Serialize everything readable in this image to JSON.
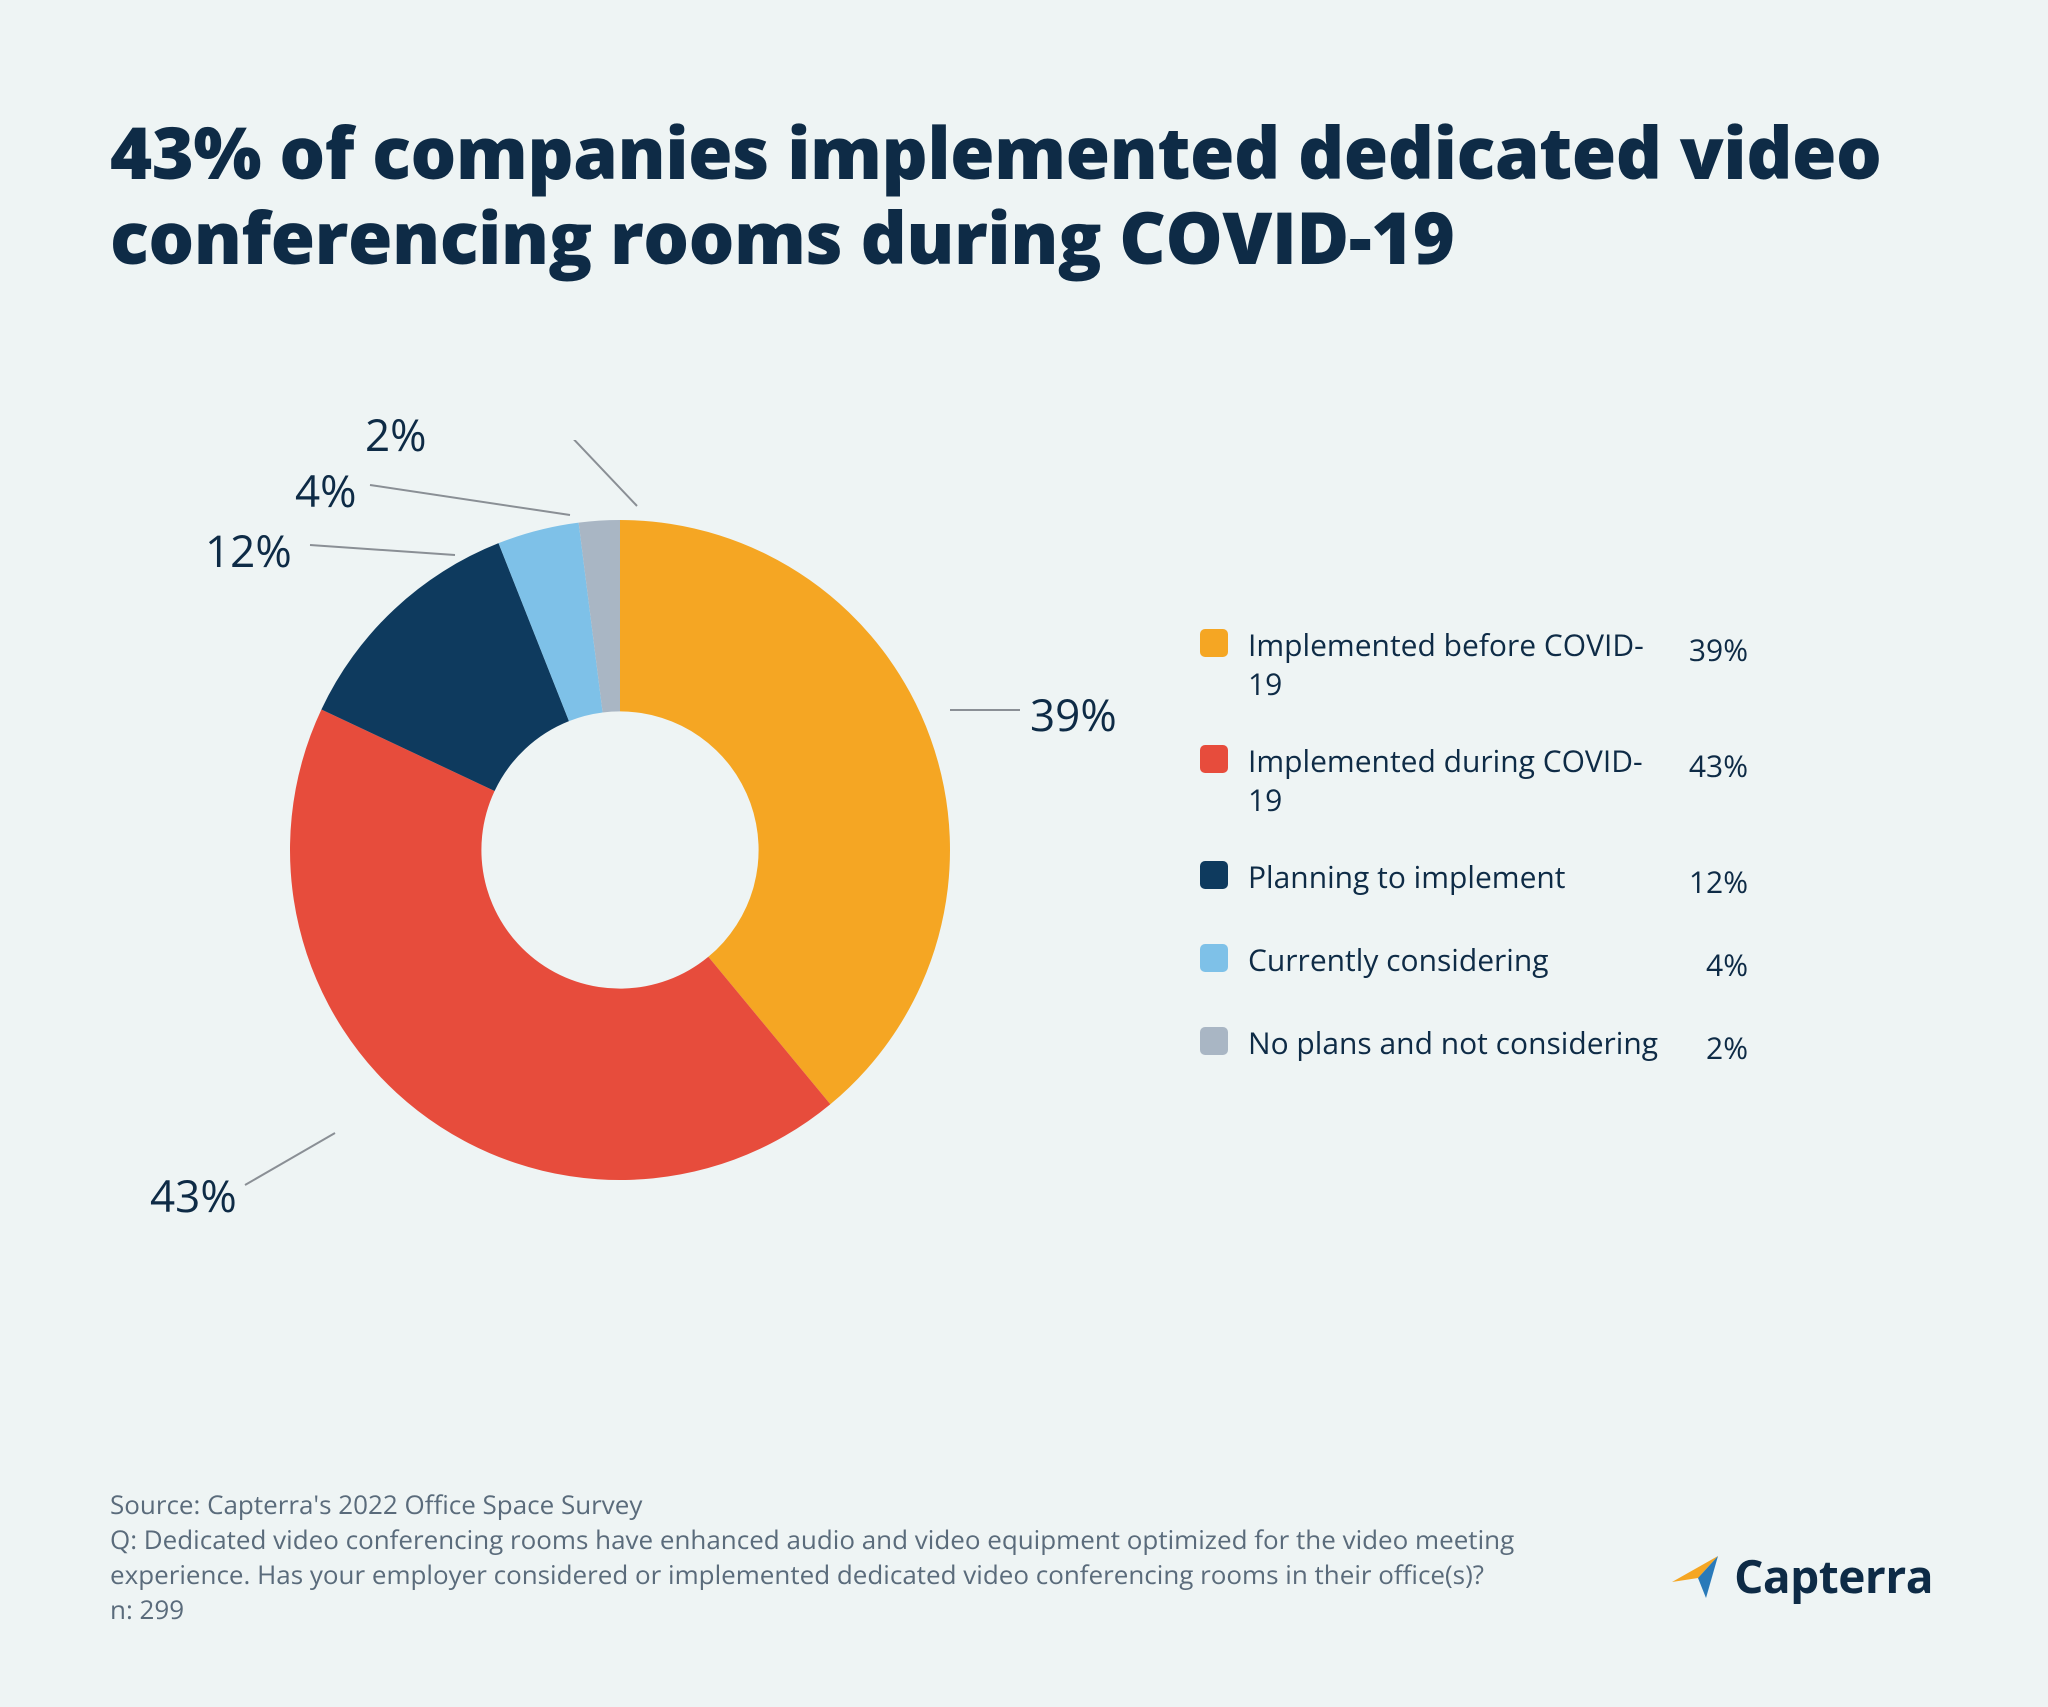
{
  "title": "43% of companies implemented dedicated video conferencing rooms during COVID-19",
  "chart": {
    "type": "donut",
    "background_color": "#eef4f4",
    "inner_radius_ratio": 0.42,
    "outer_radius": 330,
    "title_fontsize": 72,
    "title_color": "#0e2b46",
    "label_fontsize": 44,
    "legend_fontsize": 30,
    "leader_color": "#8a8f95",
    "slices": [
      {
        "label": "Implemented before COVID-19",
        "value": 39,
        "display": "39%",
        "color": "#f5a623"
      },
      {
        "label": "Implemented during COVID-19",
        "value": 43,
        "display": "43%",
        "color": "#e74c3c"
      },
      {
        "label": "Planning to implement",
        "value": 12,
        "display": "12%",
        "color": "#0e3a5e"
      },
      {
        "label": "Currently considering",
        "value": 4,
        "display": "4%",
        "color": "#7ec1e8"
      },
      {
        "label": "No plans and not considering",
        "value": 2,
        "display": "2%",
        "color": "#a9b6c4"
      }
    ]
  },
  "footer": {
    "source": "Source: Capterra's 2022 Office Space Survey",
    "question": "Q: Dedicated video conferencing rooms have enhanced audio and video equipment optimized for the video meeting experience. Has your employer considered or implemented dedicated video conferencing rooms in their office(s)?",
    "n": "n: 299",
    "text_color": "#5a6b7b",
    "fontsize": 26
  },
  "brand": {
    "name": "Capterra",
    "logo_colors": {
      "arrow_orange": "#f5a623",
      "arrow_blue": "#2a7ab9",
      "text": "#0e2b46"
    },
    "fontsize": 46
  }
}
